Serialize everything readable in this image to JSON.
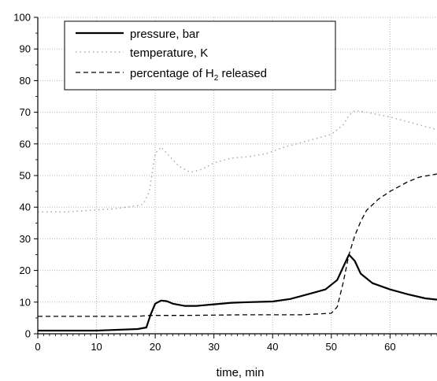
{
  "chart_data": {
    "type": "line",
    "xlabel": "time, min",
    "ylabel": "",
    "xlim": [
      0,
      68
    ],
    "ylim": [
      0,
      100
    ],
    "x_ticks": [
      0,
      10,
      20,
      30,
      40,
      50,
      60
    ],
    "y_ticks": [
      0,
      10,
      20,
      30,
      40,
      50,
      60,
      70,
      80,
      90,
      100
    ],
    "grid": true,
    "legend_position": "top-left",
    "series": [
      {
        "name": "pressure, bar",
        "style": "solid",
        "color": "#000000",
        "points": [
          [
            0,
            1
          ],
          [
            10,
            1
          ],
          [
            17,
            1.5
          ],
          [
            18.5,
            2
          ],
          [
            19.2,
            6
          ],
          [
            20,
            9.5
          ],
          [
            21,
            10.5
          ],
          [
            22,
            10.3
          ],
          [
            23,
            9.5
          ],
          [
            25,
            8.8
          ],
          [
            27,
            8.8
          ],
          [
            30,
            9.3
          ],
          [
            33,
            9.8
          ],
          [
            36,
            10
          ],
          [
            40,
            10.2
          ],
          [
            43,
            11
          ],
          [
            46,
            12.5
          ],
          [
            49,
            14
          ],
          [
            51,
            17
          ],
          [
            52,
            21
          ],
          [
            53,
            25
          ],
          [
            54,
            23
          ],
          [
            55,
            19
          ],
          [
            57,
            16
          ],
          [
            60,
            14
          ],
          [
            63,
            12.5
          ],
          [
            66,
            11.2
          ],
          [
            68,
            10.8
          ]
        ]
      },
      {
        "name": "temperature, K",
        "style": "dotted",
        "color": "#aaaaaa",
        "points": [
          [
            0,
            38.5
          ],
          [
            5,
            38.5
          ],
          [
            9,
            39
          ],
          [
            13,
            39.5
          ],
          [
            17,
            40.5
          ],
          [
            18,
            41
          ],
          [
            19,
            45
          ],
          [
            20,
            57
          ],
          [
            21,
            59
          ],
          [
            22,
            57
          ],
          [
            24,
            53
          ],
          [
            26,
            51
          ],
          [
            28,
            52
          ],
          [
            30,
            54
          ],
          [
            33,
            55.5
          ],
          [
            36,
            56
          ],
          [
            39,
            57
          ],
          [
            42,
            59
          ],
          [
            45,
            60.5
          ],
          [
            48,
            62
          ],
          [
            50,
            63
          ],
          [
            52,
            66
          ],
          [
            53,
            69
          ],
          [
            54,
            70.5
          ],
          [
            56,
            70
          ],
          [
            60,
            68.5
          ],
          [
            64,
            66.5
          ],
          [
            68,
            64.5
          ]
        ]
      },
      {
        "name": "percentage of H₂ released",
        "style": "dashed",
        "color": "#000000",
        "points": [
          [
            0,
            5.5
          ],
          [
            17,
            5.5
          ],
          [
            19,
            5.8
          ],
          [
            25,
            5.8
          ],
          [
            35,
            6
          ],
          [
            45,
            6
          ],
          [
            50,
            6.5
          ],
          [
            51,
            8.5
          ],
          [
            52,
            16
          ],
          [
            53,
            25
          ],
          [
            54,
            31
          ],
          [
            55,
            35.5
          ],
          [
            56,
            39
          ],
          [
            58,
            42.5
          ],
          [
            60,
            45
          ],
          [
            63,
            48
          ],
          [
            65,
            49.5
          ],
          [
            68,
            50.5
          ]
        ]
      }
    ],
    "legend": [
      {
        "label": "pressure, bar",
        "style": "solid"
      },
      {
        "label": "temperature, K",
        "style": "dotted"
      },
      {
        "label_prefix": "percentage of H",
        "label_subscript": "2",
        "label_suffix": " released",
        "style": "dashed"
      }
    ]
  }
}
